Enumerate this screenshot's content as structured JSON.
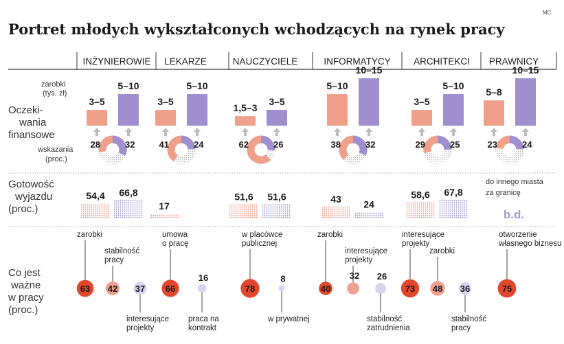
{
  "title": "Portret młodych wykształconych wchodzących na rynek pracy",
  "credit": "MC",
  "colors": {
    "salmon": "#ef9f8a",
    "purple": "#a08fd0",
    "red": "#e0472c",
    "pink": "#efa090",
    "lavender": "#d8d3ee",
    "grey": "#c4c4c4",
    "arrow": "#bdbdbd"
  },
  "rows": {
    "finance": [
      "Oczeki-",
      "wania",
      "finansowe"
    ],
    "mobility": [
      "Gotowość",
      "wyjazdu",
      "(proc.)"
    ],
    "important": [
      "Co jest",
      "ważne",
      "w pracy",
      "(proc.)"
    ]
  },
  "legend": {
    "earnings": [
      "zarobki",
      "(tys. zł)"
    ],
    "indications": [
      "wskazania",
      "(proc.)"
    ],
    "mobility_note": [
      "do innego miasta",
      "za granicę"
    ]
  },
  "chart_data": {
    "type": "table",
    "professions": [
      {
        "name": "INŻYNIEROWIE",
        "earnings_low": {
          "label": "3–5",
          "min": 3,
          "max": 5,
          "pct": 28
        },
        "earnings_high": {
          "label": "5–10",
          "min": 5,
          "max": 10,
          "pct": 32
        },
        "mobility_city": {
          "label": "54,4",
          "value": 54.4
        },
        "mobility_abroad": {
          "label": "66,8",
          "value": 66.8
        },
        "important": [
          {
            "label": [
              "zarobki"
            ],
            "value": 63,
            "color": "red"
          },
          {
            "label": [
              "stabilność",
              "pracy"
            ],
            "value": 42,
            "color": "pink"
          },
          {
            "label": [
              "interesujące",
              "projekty"
            ],
            "value": 37,
            "color": "lavender"
          }
        ]
      },
      {
        "name": "LEKARZE",
        "earnings_low": {
          "label": "3–5",
          "min": 3,
          "max": 5,
          "pct": 41
        },
        "earnings_high": {
          "label": "5–10",
          "min": 5,
          "max": 10,
          "pct": 24
        },
        "mobility_city": {
          "label": "17",
          "value": 17
        },
        "mobility_abroad": null,
        "important": [
          {
            "label": [
              "umowa",
              "o pracę"
            ],
            "value": 66,
            "color": "red"
          },
          {
            "label": [
              "praca na",
              "kontrakt"
            ],
            "value": 16,
            "color": "lavender"
          }
        ]
      },
      {
        "name": "NAUCZYCIELE",
        "earnings_low": {
          "label": "1,5–3",
          "min": 1.5,
          "max": 3,
          "pct": 62
        },
        "earnings_high": {
          "label": "3–5",
          "min": 3,
          "max": 5,
          "pct": 26
        },
        "mobility_city": {
          "label": "51,6",
          "value": 51.6
        },
        "mobility_abroad": {
          "label": "51,6",
          "value": 51.6
        },
        "important": [
          {
            "label": [
              "w placówce",
              "publicznej"
            ],
            "value": 78,
            "color": "red"
          },
          {
            "label": [
              "w prywatnej"
            ],
            "value": 8,
            "color": "lavender"
          }
        ]
      },
      {
        "name": "INFORMATYCY",
        "earnings_low": {
          "label": "5–10",
          "min": 5,
          "max": 10,
          "pct": 38
        },
        "earnings_high": {
          "label": "10–15",
          "min": 10,
          "max": 15,
          "pct": 32
        },
        "mobility_city": {
          "label": "43",
          "value": 43
        },
        "mobility_abroad": {
          "label": "24",
          "value": 24
        },
        "important": [
          {
            "label": [
              "zarobki"
            ],
            "value": 40,
            "color": "red"
          },
          {
            "label": [
              "interesujące",
              "projekty"
            ],
            "value": 32,
            "color": "pink"
          },
          {
            "label": [
              "stabilność",
              "zatrudnienia"
            ],
            "value": 26,
            "color": "lavender"
          }
        ]
      },
      {
        "name": "ARCHITEKCI",
        "earnings_low": {
          "label": "3–5",
          "min": 3,
          "max": 5,
          "pct": 29
        },
        "earnings_high": {
          "label": "5–10",
          "min": 5,
          "max": 10,
          "pct": 25
        },
        "mobility_city": {
          "label": "58,6",
          "value": 58.6
        },
        "mobility_abroad": {
          "label": "67,8",
          "value": 67.8
        },
        "important": [
          {
            "label": [
              "interesujące",
              "projekty"
            ],
            "value": 73,
            "color": "red"
          },
          {
            "label": [
              "zarobki"
            ],
            "value": 48,
            "color": "pink"
          },
          {
            "label": [
              "stabilność",
              "pracy"
            ],
            "value": 36,
            "color": "lavender"
          }
        ]
      },
      {
        "name": "PRAWNICY",
        "earnings_low": {
          "label": "5–8",
          "min": 5,
          "max": 8,
          "pct": 23
        },
        "earnings_high": {
          "label": "10–15",
          "min": 10,
          "max": 15,
          "pct": 24
        },
        "mobility_city": null,
        "mobility_abroad": null,
        "mobility_note": "b.d.",
        "important": [
          {
            "label": [
              "otworzenie",
              "własnego biznesu"
            ],
            "value": 75,
            "color": "red"
          }
        ]
      }
    ]
  }
}
